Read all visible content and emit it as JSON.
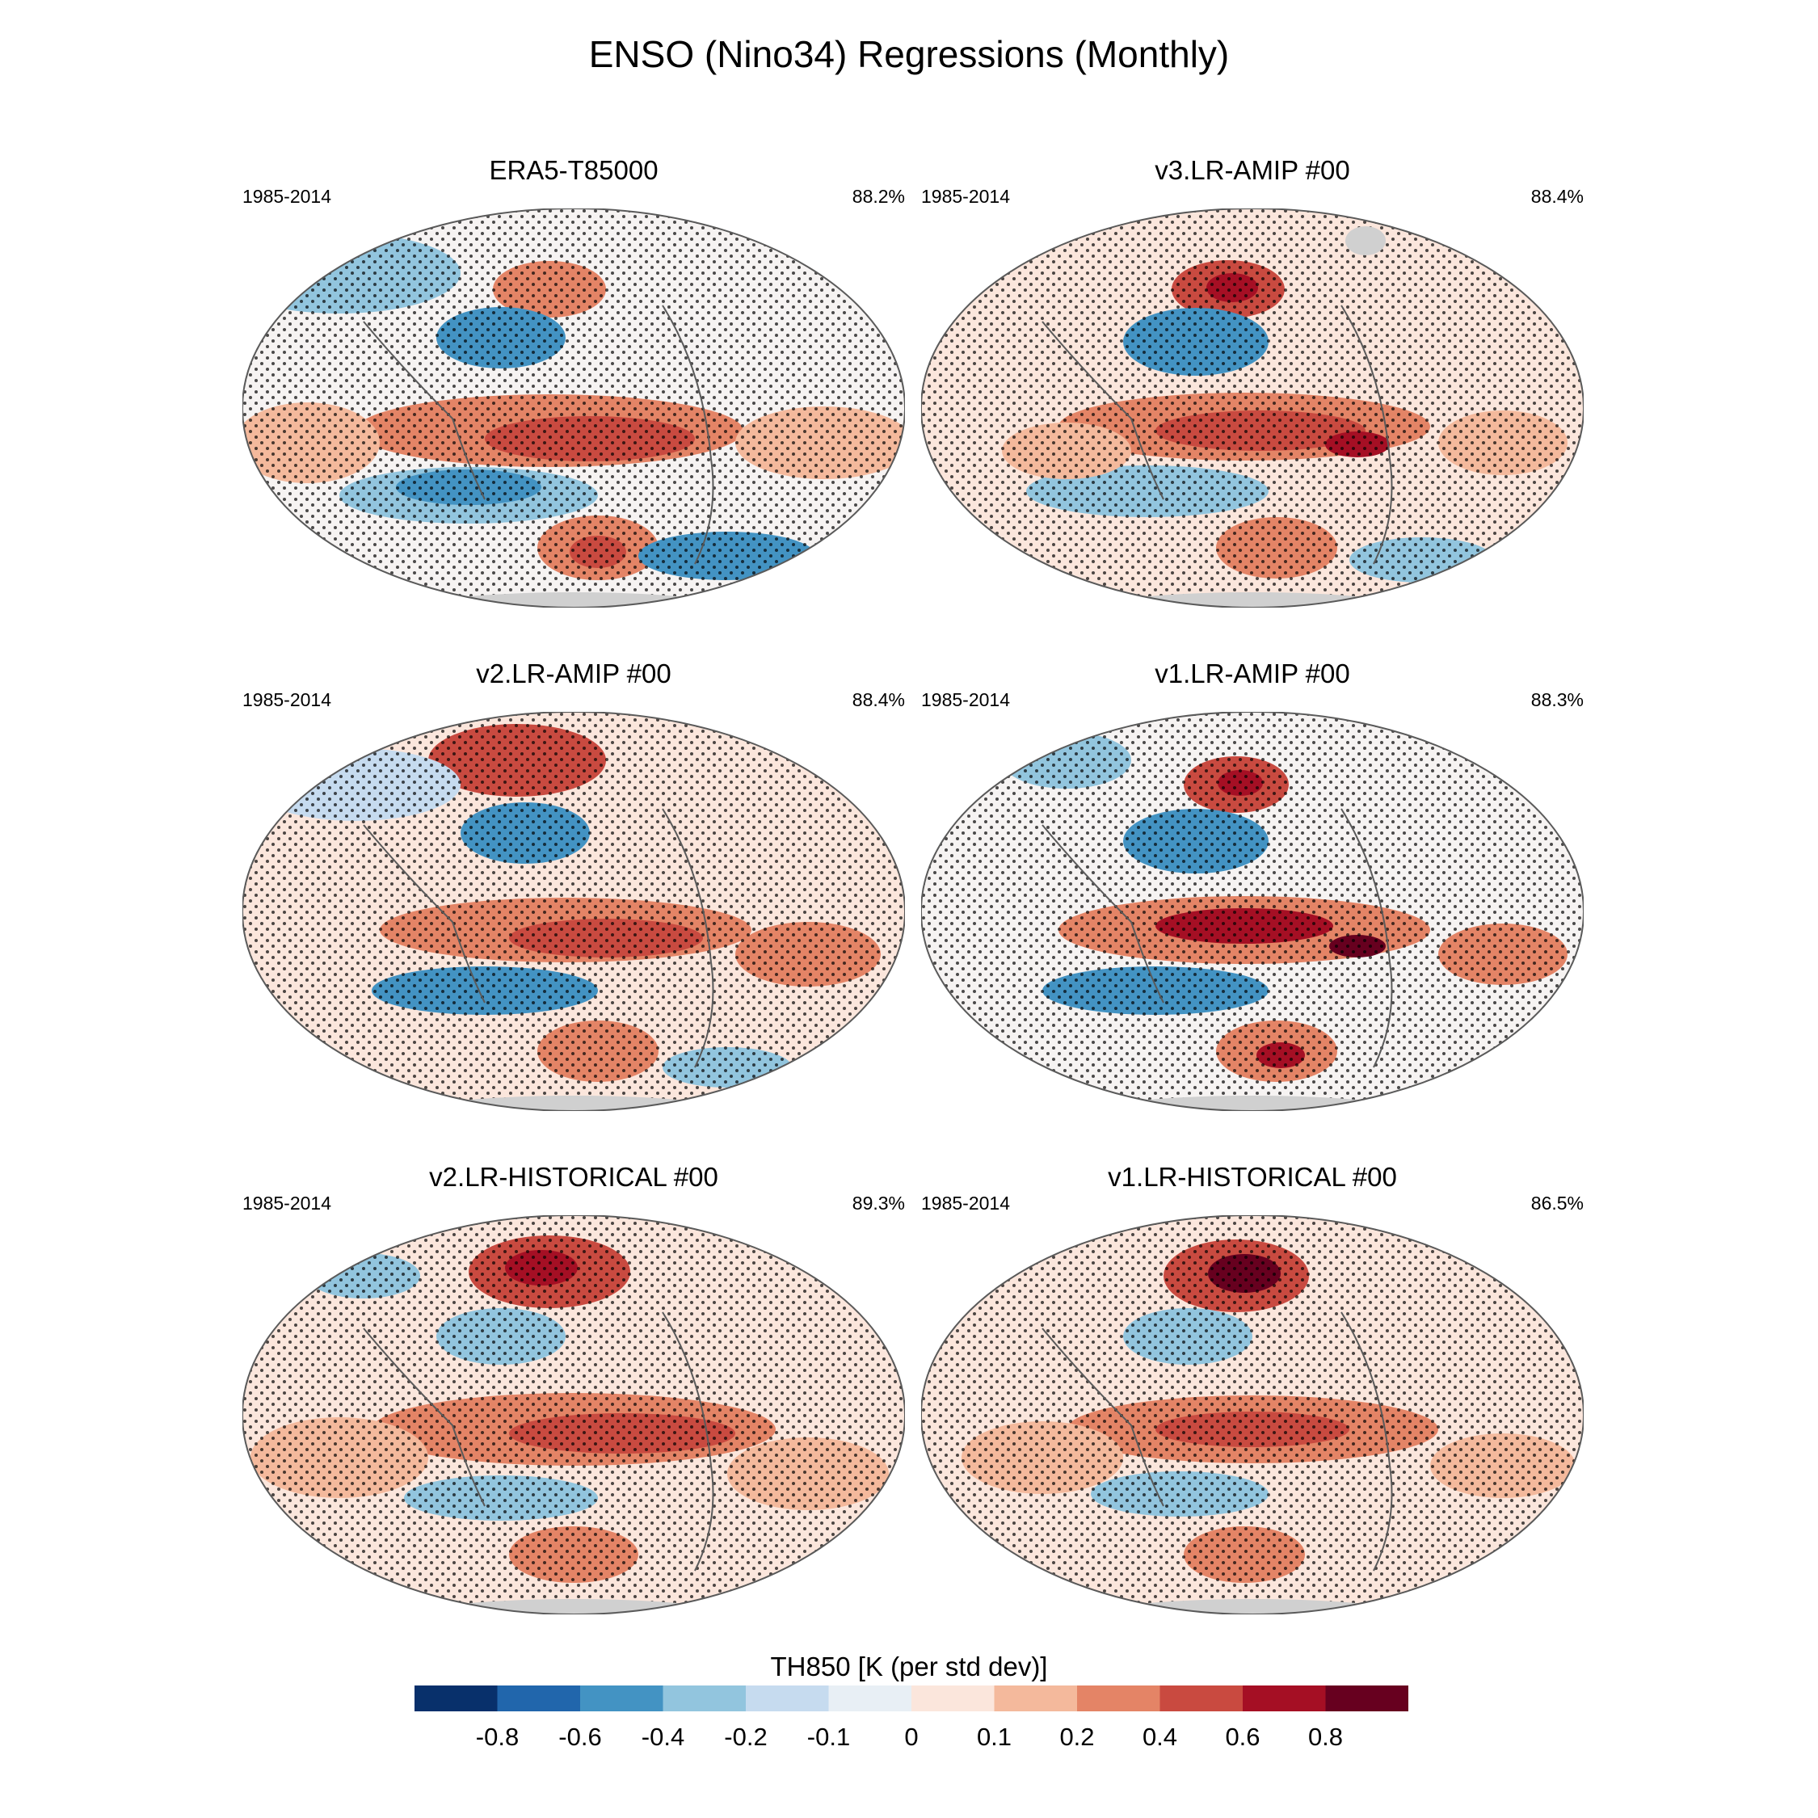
{
  "figure": {
    "title": "ENSO (Nino34) Regressions (Monthly)"
  },
  "panels": [
    {
      "title": "ERA5-T85000",
      "period": "1985-2014",
      "percent": "88.2%"
    },
    {
      "title": "v3.LR-AMIP  #00",
      "period": "1985-2014",
      "percent": "88.4%"
    },
    {
      "title": "v2.LR-AMIP  #00",
      "period": "1985-2014",
      "percent": "88.4%"
    },
    {
      "title": "v1.LR-AMIP  #00",
      "period": "1985-2014",
      "percent": "88.3%"
    },
    {
      "title": "v2.LR-HISTORICAL  #00",
      "period": "1985-2014",
      "percent": "89.3%"
    },
    {
      "title": "v1.LR-HISTORICAL  #00",
      "period": "1985-2014",
      "percent": "86.5%"
    }
  ],
  "colorbar": {
    "label": "TH850 [K (per std dev)]",
    "ticks": [
      "-0.8",
      "-0.6",
      "-0.4",
      "-0.2",
      "-0.1",
      "0",
      "0.1",
      "0.2",
      "0.4",
      "0.6",
      "0.8"
    ],
    "colors": [
      "#08306b",
      "#2166ac",
      "#4393c3",
      "#92c5de",
      "#c6dbef",
      "#e8eff5",
      "#fbe6dc",
      "#f4b99c",
      "#e48466",
      "#c94a40",
      "#a50f24",
      "#67001f"
    ]
  },
  "colors": {
    "land_ice": "#d0d0d0",
    "outline": "#5a5a5a",
    "stipple": "#000000"
  }
}
